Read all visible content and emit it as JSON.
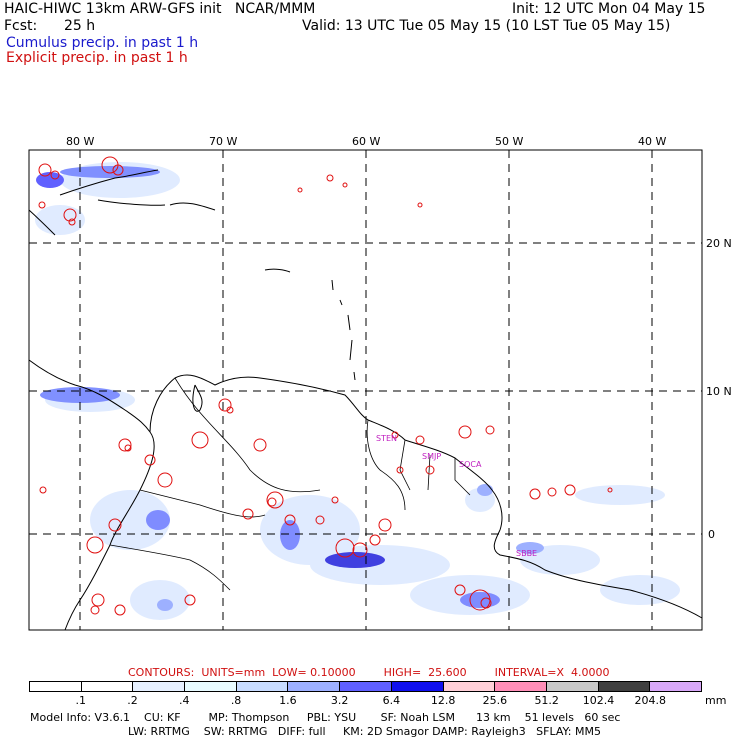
{
  "header": {
    "title": "HAIC-HIWC 13km ARW-GFS init   NCAR/MMM",
    "init": "Init: 12 UTC Mon 04 May 15",
    "fcst_label": "Fcst:",
    "fcst_value": "25 h",
    "valid": "Valid: 13 UTC Tue 05 May 15 (10 LST Tue 05 May 15)",
    "legend_cumulus": "Cumulus precip. in past 1 h",
    "legend_explicit": "Explicit precip. in past 1 h"
  },
  "map": {
    "lon_labels": [
      "80 W",
      "70 W",
      "60 W",
      "50 W",
      "40 W"
    ],
    "lat_labels": [
      "20 N",
      "10 N",
      "0"
    ],
    "stations": [
      "STEN",
      "SMJP",
      "SOCA",
      "SBBE"
    ]
  },
  "contours": {
    "text": "CONTOURS:  UNITS=mm  LOW= 0.10000        HIGH=  25.600        INTERVAL=X  4.0000"
  },
  "colorbar": {
    "labels": [
      ".1",
      ".2",
      ".4",
      ".8",
      "1.6",
      "3.2",
      "6.4",
      "12.8",
      "25.6",
      "51.2",
      "102.4",
      "204.8"
    ],
    "units": "mm",
    "colors": [
      "#ffffff",
      "#ffffff",
      "#e6f0ff",
      "#e8fbff",
      "#c8dcff",
      "#9db0ff",
      "#6060ff",
      "#1010ee",
      "#ffd0d8",
      "#ff8fb8",
      "#c8c8c8",
      "#404040",
      "#d8a8f8"
    ]
  },
  "model_info": {
    "line1": "Model Info: V3.6.1    CU: KF        MP: Thompson     PBL: YSU       SF: Noah LSM      13 km    51 levels   60 sec",
    "line2": "LW: RRTMG    SW: RRTMG   DIFF: full     KM: 2D Smagor DAMP: Rayleigh3   SFLAY: MM5"
  },
  "colors": {
    "blue_precip": "#2020d0",
    "red_precip": "#e01010",
    "station": "#c020c0"
  }
}
